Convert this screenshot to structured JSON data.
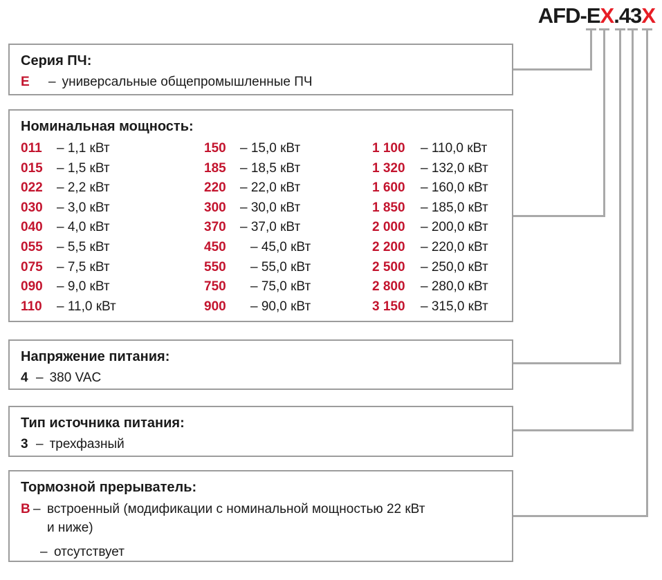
{
  "palette": {
    "red_title": "#e71d25",
    "red_code": "#c3142e",
    "line_gray": "#a9a9a9",
    "border_gray": "#9c9c9c",
    "text": "#1a1a1a"
  },
  "model_code": {
    "segments": [
      {
        "text": "AFD-E",
        "red": false
      },
      {
        "text": "X",
        "red": true
      },
      {
        "text": ".43",
        "red": false
      },
      {
        "text": "X",
        "red": true
      }
    ]
  },
  "series_box": {
    "title": "Серия ПЧ:",
    "code": "E",
    "dash": "–",
    "description": "универсальные общепромышленные ПЧ"
  },
  "power_box": {
    "title": "Номинальная мощность:",
    "columns": [
      [
        {
          "code": "011",
          "label": "– 1,1 кВт"
        },
        {
          "code": "015",
          "label": "– 1,5 кВт"
        },
        {
          "code": "022",
          "label": "– 2,2 кВт"
        },
        {
          "code": "030",
          "label": "– 3,0 кВт"
        },
        {
          "code": "040",
          "label": "– 4,0 кВт"
        },
        {
          "code": "055",
          "label": "– 5,5 кВт"
        },
        {
          "code": "075",
          "label": "– 7,5 кВт"
        },
        {
          "code": "090",
          "label": "– 9,0 кВт"
        },
        {
          "code": "110",
          "label": "– 11,0 кВт"
        }
      ],
      [
        {
          "code": "150",
          "label": "– 15,0 кВт"
        },
        {
          "code": "185",
          "label": "– 18,5 кВт"
        },
        {
          "code": "220",
          "label": "– 22,0 кВт"
        },
        {
          "code": "300",
          "label": "– 30,0 кВт"
        },
        {
          "code": "370",
          "label": "– 37,0 кВт"
        },
        {
          "code": "450",
          "label": "– 45,0 кВт",
          "indent": true
        },
        {
          "code": "550",
          "label": "– 55,0 кВт",
          "indent": true
        },
        {
          "code": "750",
          "label": "– 75,0 кВт",
          "indent": true
        },
        {
          "code": "900",
          "label": "– 90,0 кВт",
          "indent": true
        }
      ],
      [
        {
          "code": "1 100",
          "label": "– 110,0 кВт"
        },
        {
          "code": "1 320",
          "label": "– 132,0 кВт"
        },
        {
          "code": "1 600",
          "label": "– 160,0 кВт"
        },
        {
          "code": "1 850",
          "label": "– 185,0 кВт"
        },
        {
          "code": "2 000",
          "label": "– 200,0 кВт"
        },
        {
          "code": "2 200",
          "label": "– 220,0 кВт"
        },
        {
          "code": "2 500",
          "label": "– 250,0 кВт"
        },
        {
          "code": "2 800",
          "label": "– 280,0 кВт"
        },
        {
          "code": "3 150",
          "label": "– 315,0 кВт"
        }
      ]
    ]
  },
  "voltage_box": {
    "title": "Напряжение питания:",
    "code": "4",
    "dash": "–",
    "description": "380 VAC"
  },
  "source_box": {
    "title": "Тип источника питания:",
    "code": "3",
    "dash": "–",
    "description": "трехфазный"
  },
  "brake_box": {
    "title": "Тормозной прерыватель:",
    "items": [
      {
        "code": "B",
        "dash": "–",
        "description": "встроенный (модификации с номинальной мощностью 22 кВт и ниже)"
      },
      {
        "code": "",
        "dash": "–",
        "description": "отсутствует"
      }
    ]
  }
}
